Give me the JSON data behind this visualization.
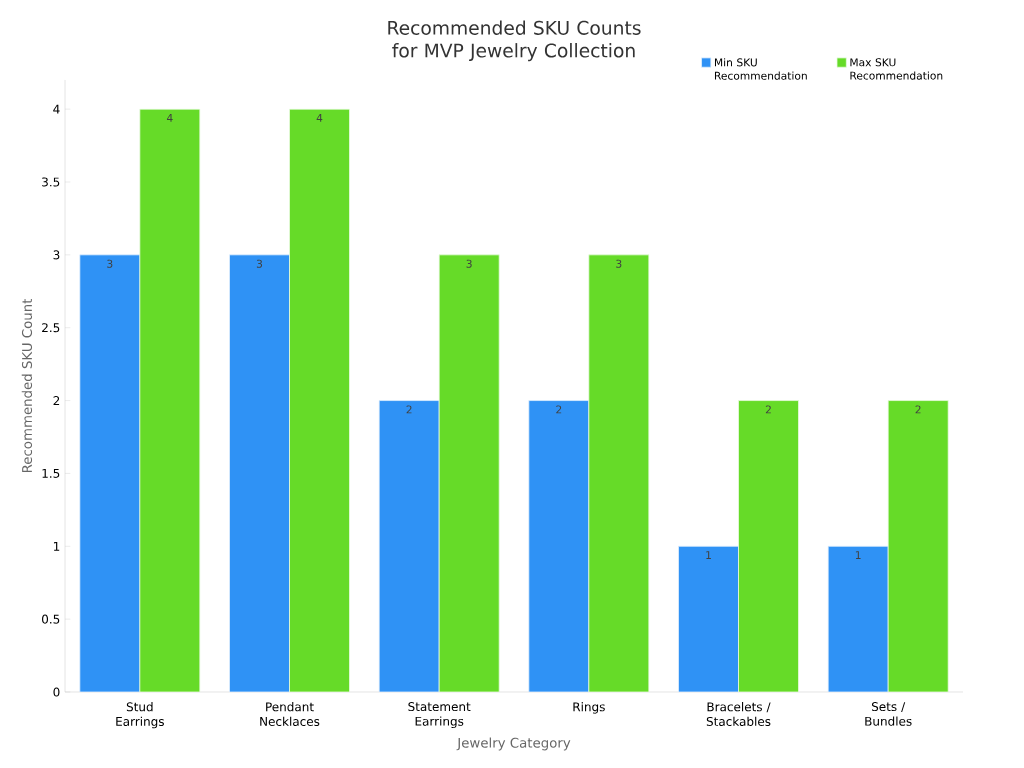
{
  "chart_data": {
    "type": "bar",
    "title": "Recommended SKU Counts for MVP Jewelry Collection",
    "xlabel": "Jewelry Category",
    "ylabel": "Recommended SKU Count",
    "categories": [
      "Stud Earrings",
      "Pendant Necklaces",
      "Statement Earrings",
      "Rings",
      "Bracelets / Stackables",
      "Sets / Bundles"
    ],
    "series": [
      {
        "name": "Min SKU Recommendation",
        "color": "#2f92f5",
        "values": [
          3,
          3,
          2,
          2,
          1,
          1
        ]
      },
      {
        "name": "Max SKU Recommendation",
        "color": "#66db28",
        "values": [
          4,
          4,
          3,
          3,
          2,
          2
        ]
      }
    ],
    "ylim": [
      0,
      4.2
    ],
    "yticks": [
      0,
      0.5,
      1,
      1.5,
      2,
      2.5,
      3,
      3.5,
      4
    ],
    "data_labels": true,
    "grid": false,
    "legend": "top right"
  }
}
